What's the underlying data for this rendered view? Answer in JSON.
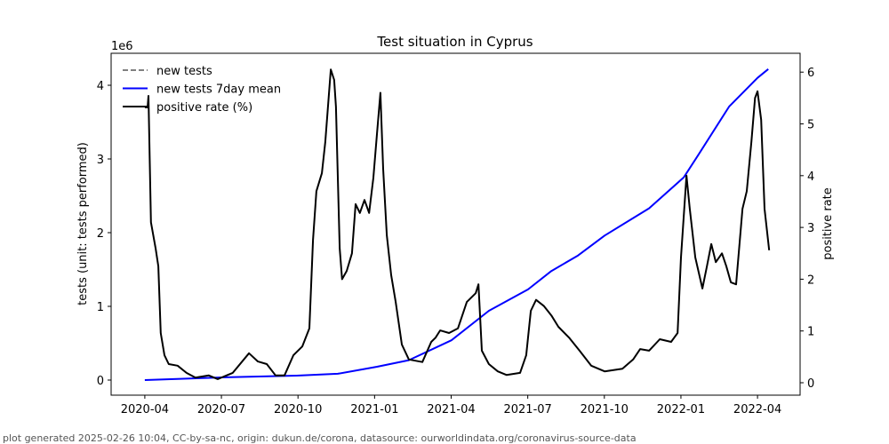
{
  "chart_data": {
    "type": "line",
    "title": "Test situation in Cyprus",
    "xlabel": "",
    "ylabel_left": "tests (unit: tests performed)",
    "ylabel_right": "positive rate",
    "left_offset_label": "1e6",
    "x_unit": "decimal year",
    "xlim": [
      2020.14,
      2022.389
    ],
    "ylim_left": [
      -0.205,
      4.434
    ],
    "ylim_right": [
      -0.24,
      6.364
    ],
    "x_ticks": [
      {
        "value": 2020.25,
        "label": "2020-04"
      },
      {
        "value": 2020.5,
        "label": "2020-07"
      },
      {
        "value": 2020.75,
        "label": "2020-10"
      },
      {
        "value": 2021.0,
        "label": "2021-01"
      },
      {
        "value": 2021.25,
        "label": "2021-04"
      },
      {
        "value": 2021.5,
        "label": "2021-07"
      },
      {
        "value": 2021.75,
        "label": "2021-10"
      },
      {
        "value": 2022.0,
        "label": "2022-01"
      },
      {
        "value": 2022.25,
        "label": "2022-04"
      }
    ],
    "y_ticks_left": [
      {
        "value": 0,
        "label": "0"
      },
      {
        "value": 1,
        "label": "1"
      },
      {
        "value": 2,
        "label": "2"
      },
      {
        "value": 3,
        "label": "3"
      },
      {
        "value": 4,
        "label": "4"
      }
    ],
    "y_ticks_right": [
      {
        "value": 0,
        "label": "0"
      },
      {
        "value": 1,
        "label": "1"
      },
      {
        "value": 2,
        "label": "2"
      },
      {
        "value": 3,
        "label": "3"
      },
      {
        "value": 4,
        "label": "4"
      },
      {
        "value": 5,
        "label": "5"
      },
      {
        "value": 6,
        "label": "6"
      }
    ],
    "legend_position": "top-left",
    "series": [
      {
        "name": "new tests",
        "axis": "left",
        "color": "#808080",
        "dash": true,
        "x": [],
        "y": []
      },
      {
        "name": "new tests 7day mean",
        "axis": "left",
        "color": "#0000ff",
        "dash": false,
        "x": [
          2020.25,
          2020.503,
          2020.746,
          2020.88,
          2021.008,
          2021.112,
          2021.251,
          2021.373,
          2021.501,
          2021.577,
          2021.664,
          2021.751,
          2021.896,
          2022.009,
          2022.056,
          2022.157,
          2022.25,
          2022.285
        ],
        "y": [
          0,
          0.036,
          0.06,
          0.085,
          0.18,
          0.27,
          0.54,
          0.94,
          1.23,
          1.48,
          1.69,
          1.96,
          2.33,
          2.75,
          3.05,
          3.71,
          4.1,
          4.22
        ]
      },
      {
        "name": "positive rate (%)",
        "axis": "right",
        "color": "#000000",
        "dash": false,
        "x": [
          2020.25,
          2020.259,
          2020.262,
          2020.27,
          2020.285,
          2020.294,
          2020.302,
          2020.314,
          2020.328,
          2020.357,
          2020.386,
          2020.415,
          2020.459,
          2020.488,
          2020.537,
          2020.59,
          2020.619,
          2020.648,
          2020.677,
          2020.706,
          2020.735,
          2020.764,
          2020.787,
          2020.799,
          2020.81,
          2020.828,
          2020.839,
          2020.857,
          2020.868,
          2020.874,
          2020.886,
          2020.894,
          2020.909,
          2020.926,
          2020.938,
          2020.952,
          2020.967,
          2020.982,
          2020.996,
          2021.008,
          2021.019,
          2021.028,
          2021.04,
          2021.054,
          2021.069,
          2021.089,
          2021.112,
          2021.156,
          2021.185,
          2021.199,
          2021.214,
          2021.243,
          2021.272,
          2021.301,
          2021.33,
          2021.339,
          2021.35,
          2021.373,
          2021.402,
          2021.431,
          2021.475,
          2021.495,
          2021.51,
          2021.527,
          2021.553,
          2021.577,
          2021.6,
          2021.635,
          2021.669,
          2021.707,
          2021.751,
          2021.809,
          2021.844,
          2021.867,
          2021.896,
          2021.931,
          2021.968,
          2021.989,
          2022.0,
          2022.018,
          2022.029,
          2022.047,
          2022.07,
          2022.085,
          2022.099,
          2022.114,
          2022.134,
          2022.148,
          2022.163,
          2022.18,
          2022.201,
          2022.215,
          2022.23,
          2022.242,
          2022.25,
          2022.262,
          2022.273,
          2022.288
        ],
        "y": [
          5.32,
          5.32,
          5.54,
          3.1,
          2.6,
          2.25,
          0.96,
          0.53,
          0.36,
          0.33,
          0.19,
          0.1,
          0.14,
          0.07,
          0.19,
          0.57,
          0.41,
          0.36,
          0.14,
          0.14,
          0.53,
          0.7,
          1.05,
          2.76,
          3.7,
          4.05,
          4.65,
          6.05,
          5.85,
          5.33,
          2.6,
          2.0,
          2.16,
          2.5,
          3.45,
          3.28,
          3.53,
          3.28,
          3.96,
          4.82,
          5.6,
          4.13,
          2.85,
          2.08,
          1.56,
          0.74,
          0.45,
          0.4,
          0.79,
          0.87,
          1.01,
          0.96,
          1.05,
          1.56,
          1.73,
          1.9,
          0.62,
          0.36,
          0.22,
          0.15,
          0.19,
          0.53,
          1.39,
          1.6,
          1.48,
          1.3,
          1.08,
          0.87,
          0.62,
          0.33,
          0.22,
          0.27,
          0.45,
          0.65,
          0.62,
          0.84,
          0.79,
          0.96,
          2.42,
          4.0,
          3.36,
          2.42,
          1.82,
          2.25,
          2.68,
          2.33,
          2.5,
          2.25,
          1.94,
          1.9,
          3.36,
          3.7,
          4.65,
          5.5,
          5.63,
          5.08,
          3.36,
          2.56
        ]
      }
    ]
  },
  "footer": "plot generated 2025-02-26 10:04, CC-by-sa-nc, origin: dukun.de/corona, datasource: ourworldindata.org/coronavirus-source-data"
}
